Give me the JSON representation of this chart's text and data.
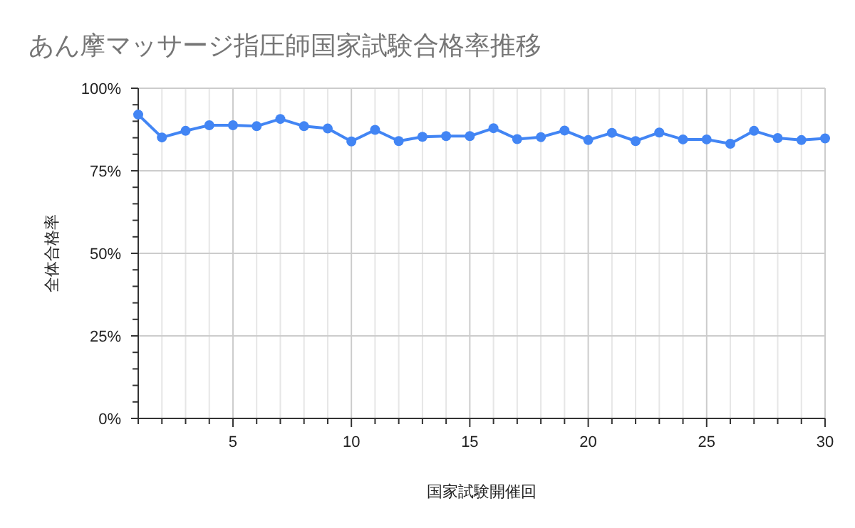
{
  "chart_data": {
    "type": "line",
    "title": "あん摩マッサージ指圧師国家試験合格率推移",
    "xlabel": "国家試験開催回",
    "ylabel": "全体合格率",
    "x": [
      1,
      2,
      3,
      4,
      5,
      6,
      7,
      8,
      9,
      10,
      11,
      12,
      13,
      14,
      15,
      16,
      17,
      18,
      19,
      20,
      21,
      22,
      23,
      24,
      25,
      26,
      27,
      28,
      29,
      30
    ],
    "series": [
      {
        "color": "#4285f4",
        "values": [
          92,
          85.1,
          87.1,
          88.8,
          88.8,
          88.5,
          90.7,
          88.5,
          87.8,
          83.9,
          87.4,
          84,
          85.3,
          85.5,
          85.5,
          87.9,
          84.6,
          85.2,
          87.2,
          84.3,
          86.5,
          84,
          86.6,
          84.5,
          84.5,
          83.2,
          87.1,
          84.9,
          84.3,
          84.8
        ]
      }
    ],
    "xlim": [
      1,
      30
    ],
    "xticks": [
      {
        "value": 1,
        "label": null
      },
      {
        "value": 2,
        "label": null
      },
      {
        "value": 3,
        "label": null
      },
      {
        "value": 4,
        "label": null
      },
      5,
      {
        "value": 6,
        "label": null
      },
      {
        "value": 7,
        "label": null
      },
      {
        "value": 8,
        "label": null
      },
      {
        "value": 9,
        "label": null
      },
      10,
      {
        "value": 11,
        "label": null
      },
      {
        "value": 12,
        "label": null
      },
      {
        "value": 13,
        "label": null
      },
      {
        "value": 14,
        "label": null
      },
      15,
      {
        "value": 16,
        "label": null
      },
      {
        "value": 17,
        "label": null
      },
      {
        "value": 18,
        "label": null
      },
      {
        "value": 19,
        "label": null
      },
      20,
      {
        "value": 21,
        "label": null
      },
      {
        "value": 22,
        "label": null
      },
      {
        "value": 23,
        "label": null
      },
      {
        "value": 24,
        "label": null
      },
      25,
      {
        "value": 26,
        "label": null
      },
      {
        "value": 27,
        "label": null
      },
      {
        "value": 28,
        "label": null
      },
      {
        "value": 29,
        "label": null
      },
      30
    ],
    "ylim": [
      0,
      100
    ],
    "yticks": [
      {
        "value": 0,
        "label": "0%"
      },
      {
        "value": 5,
        "label": null
      },
      {
        "value": 10,
        "label": null
      },
      {
        "value": 15,
        "label": null
      },
      {
        "value": 20,
        "label": null
      },
      {
        "value": 25,
        "label": "25%"
      },
      {
        "value": 30,
        "label": null
      },
      {
        "value": 35,
        "label": null
      },
      {
        "value": 40,
        "label": null
      },
      {
        "value": 45,
        "label": null
      },
      {
        "value": 50,
        "label": "50%"
      },
      {
        "value": 55,
        "label": null
      },
      {
        "value": 60,
        "label": null
      },
      {
        "value": 65,
        "label": null
      },
      {
        "value": 70,
        "label": null
      },
      {
        "value": 75,
        "label": "75%"
      },
      {
        "value": 80,
        "label": null
      },
      {
        "value": 85,
        "label": null
      },
      {
        "value": 90,
        "label": null
      },
      {
        "value": 95,
        "label": null
      },
      {
        "value": 100,
        "label": "100%"
      }
    ],
    "grid": true,
    "marker": "circle",
    "line_style": "solid"
  }
}
